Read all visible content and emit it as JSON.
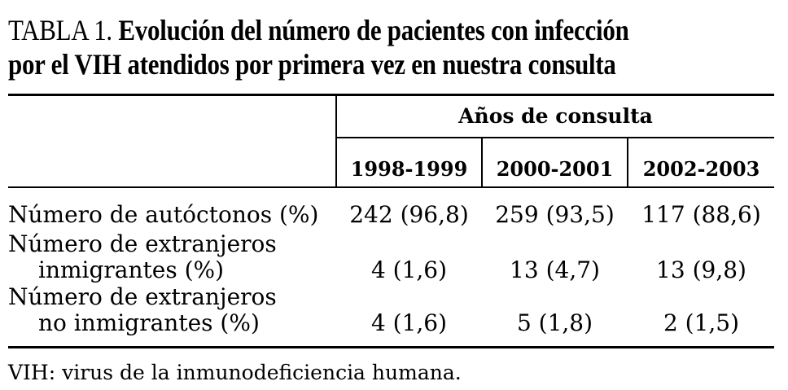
{
  "table": {
    "label": "TABLA 1.",
    "title_line1": "Evolución del número de pacientes con infección",
    "title_line2": "por el VIH atendidos por primera vez en nuestra consulta",
    "spanning_header": "Años de consulta",
    "columns": [
      "1998-1999",
      "2000-2001",
      "2002-2003"
    ],
    "rows": [
      {
        "label_line1": "Número de autóctonos (%)",
        "label_line2": "",
        "values": [
          "242 (96,8)",
          "259 (93,5)",
          "117 (88,6)"
        ]
      },
      {
        "label_line1": "Número de extranjeros",
        "label_line2": "inmigrantes (%)",
        "values": [
          "4 (1,6)",
          "13 (4,7)",
          "13 (9,8)"
        ]
      },
      {
        "label_line1": "Número de extranjeros",
        "label_line2": "no inmigrantes (%)",
        "values": [
          "4 (1,6)",
          "5 (1,8)",
          "2 (1,5)"
        ]
      }
    ],
    "footnote": "VIH: virus de la inmunodeficiencia humana."
  }
}
